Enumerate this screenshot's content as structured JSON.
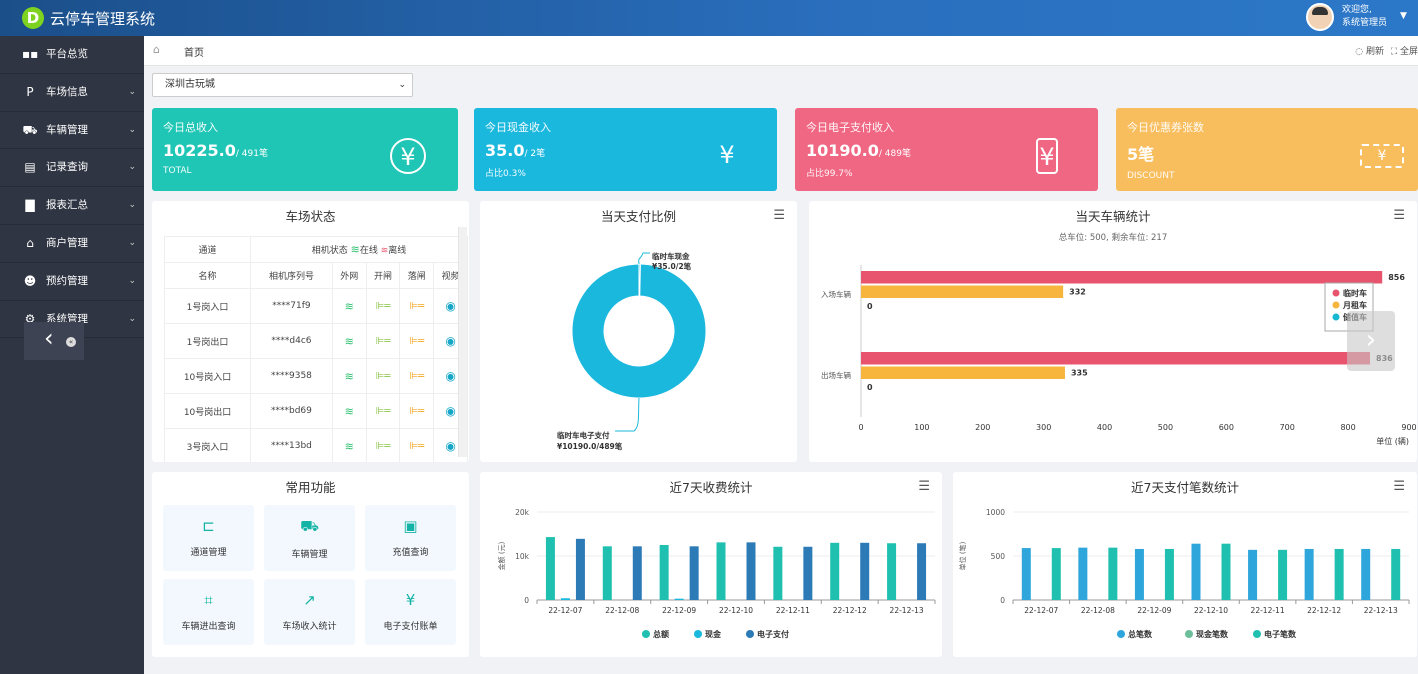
{
  "app": {
    "title": "云停车管理系统",
    "logo_letter": "D",
    "welcome": "欢迎您,",
    "user_role": "系统管理员"
  },
  "sidebar": {
    "items": [
      {
        "label": "平台总览",
        "icon": "overview-icon",
        "glyph": "▪▪",
        "caret": false
      },
      {
        "label": "车场信息",
        "icon": "parking-icon",
        "glyph": "P",
        "caret": true
      },
      {
        "label": "车辆管理",
        "icon": "car-icon",
        "glyph": "⛟",
        "caret": true
      },
      {
        "label": "记录查询",
        "icon": "clipboard-icon",
        "glyph": "▤",
        "caret": true
      },
      {
        "label": "报表汇总",
        "icon": "bar-chart-icon",
        "glyph": "▇",
        "caret": true
      },
      {
        "label": "商户管理",
        "icon": "shop-icon",
        "glyph": "⌂",
        "caret": true
      },
      {
        "label": "预约管理",
        "icon": "users-icon",
        "glyph": "☻",
        "caret": true
      },
      {
        "label": "系统管理",
        "icon": "gear-icon",
        "glyph": "⚙",
        "caret": true
      }
    ],
    "collapse_symbol": "«"
  },
  "tabs": {
    "home": "首页",
    "refresh": "刷新",
    "fullscreen": "全屏"
  },
  "lot_select": {
    "value": "深圳古玩城"
  },
  "cards": [
    {
      "title": "今日总收入",
      "value": "10225.0",
      "sub": "/ 491笔",
      "foot": "TOTAL",
      "icon": "yen-circle-icon",
      "glyph": "¥",
      "color": "#1fc6b5"
    },
    {
      "title": "今日现金收入",
      "value": "35.0",
      "sub": "/ 2笔",
      "foot": "占比0.3%",
      "icon": "money-bag-icon",
      "glyph": "¥",
      "color": "#1bb8de"
    },
    {
      "title": "今日电子支付收入",
      "value": "10190.0",
      "sub": "/ 489笔",
      "foot": "占比99.7%",
      "icon": "phone-pay-icon",
      "glyph": "¥",
      "color": "#f06783"
    },
    {
      "title": "今日优惠券张数",
      "value": "5笔",
      "sub": "",
      "foot": "DISCOUNT",
      "icon": "coupon-icon",
      "glyph": "¥",
      "color": "#f8bd5c"
    }
  ],
  "status": {
    "title": "车场状态",
    "h_channel": "通道",
    "camera_status": "相机状态",
    "online": "在线",
    "offline": "离线",
    "cols": [
      "名称",
      "相机序列号",
      "外网",
      "开闸",
      "落闸",
      "视频"
    ],
    "rows": [
      {
        "name": "1号岗入口",
        "serial": "****71f9"
      },
      {
        "name": "1号岗出口",
        "serial": "****d4c6"
      },
      {
        "name": "10号岗入口",
        "serial": "****9358"
      },
      {
        "name": "10号岗出口",
        "serial": "****bd69"
      },
      {
        "name": "3号岗入口",
        "serial": "****13bd"
      }
    ]
  },
  "pay_ratio": {
    "title": "当天支付比例",
    "label_cash": "临时车现金",
    "label_cash_val": "¥35.0/2笔",
    "label_e": "临时车电子支付",
    "label_e_val": "¥10190.0/489笔",
    "chart_data": {
      "type": "pie",
      "categories": [
        "临时车现金",
        "临时车电子支付"
      ],
      "values": [
        35.0,
        10190.0
      ],
      "colors": [
        "#1bb8de",
        "#1bb8de"
      ]
    }
  },
  "vehicle_stats": {
    "title": "当天车辆统计",
    "subtitle": "总车位: 500, 剩余车位: 217",
    "unit": "单位 (辆)",
    "chart_data": {
      "type": "bar",
      "orientation": "horizontal",
      "categories": [
        "入场车辆",
        "出场车辆"
      ],
      "series": [
        {
          "name": "临时车",
          "values": [
            856,
            836
          ],
          "color": "#e8546e"
        },
        {
          "name": "月租车",
          "values": [
            332,
            335
          ],
          "color": "#f8b53e"
        },
        {
          "name": "储值车",
          "values": [
            0,
            0
          ],
          "color": "#15b8d0"
        }
      ],
      "xlim": [
        0,
        900
      ],
      "xticks": [
        0,
        100,
        200,
        300,
        400,
        500,
        600,
        700,
        800,
        900
      ]
    }
  },
  "functions": {
    "title": "常用功能",
    "items": [
      {
        "label": "通道管理",
        "icon": "gate-icon",
        "glyph": "⊏"
      },
      {
        "label": "车辆管理",
        "icon": "car-icon",
        "glyph": "⛟"
      },
      {
        "label": "充值查询",
        "icon": "wallet-icon",
        "glyph": "▣"
      },
      {
        "label": "车辆进出查询",
        "icon": "scan-icon",
        "glyph": "⌗"
      },
      {
        "label": "车场收入统计",
        "icon": "growth-chart-icon",
        "glyph": "↗"
      },
      {
        "label": "电子支付账单",
        "icon": "yen-coin-icon",
        "glyph": "¥"
      }
    ]
  },
  "fee7": {
    "title": "近7天收费统计",
    "ylabel": "金额 (元)",
    "chart_data": {
      "type": "bar",
      "categories": [
        "22-12-07",
        "22-12-08",
        "22-12-09",
        "22-12-10",
        "22-12-11",
        "22-12-12",
        "22-12-13"
      ],
      "series": [
        {
          "name": "总额",
          "values": [
            14300,
            12200,
            12500,
            13100,
            12100,
            13000,
            12900
          ],
          "color": "#1fc0b0"
        },
        {
          "name": "现金",
          "values": [
            400,
            0,
            300,
            0,
            0,
            0,
            0
          ],
          "color": "#1bb8de"
        },
        {
          "name": "电子支付",
          "values": [
            13900,
            12200,
            12200,
            13100,
            12100,
            13000,
            12900
          ],
          "color": "#2c7bb6"
        }
      ],
      "ylim": [
        0,
        20000
      ],
      "yticks": [
        0,
        10000,
        20000
      ],
      "ytick_labels": [
        "0",
        "10k",
        "20k"
      ]
    }
  },
  "count7": {
    "title": "近7天支付笔数统计",
    "ylabel": "单位 (笔)",
    "chart_data": {
      "type": "bar",
      "categories": [
        "22-12-07",
        "22-12-08",
        "22-12-09",
        "22-12-10",
        "22-12-11",
        "22-12-12",
        "22-12-13"
      ],
      "series": [
        {
          "name": "总笔数",
          "values": [
            590,
            595,
            580,
            640,
            570,
            580,
            580
          ],
          "color": "#2ea6db"
        },
        {
          "name": "现金笔数",
          "values": [
            0,
            0,
            0,
            0,
            0,
            0,
            0
          ],
          "color": "#6dbf9a"
        },
        {
          "name": "电子笔数",
          "values": [
            590,
            595,
            580,
            640,
            570,
            580,
            580
          ],
          "color": "#1fc0b0"
        }
      ],
      "ylim": [
        0,
        1000
      ],
      "yticks": [
        0,
        500,
        1000
      ],
      "ytick_labels": [
        "0",
        "500",
        "1000"
      ]
    }
  }
}
